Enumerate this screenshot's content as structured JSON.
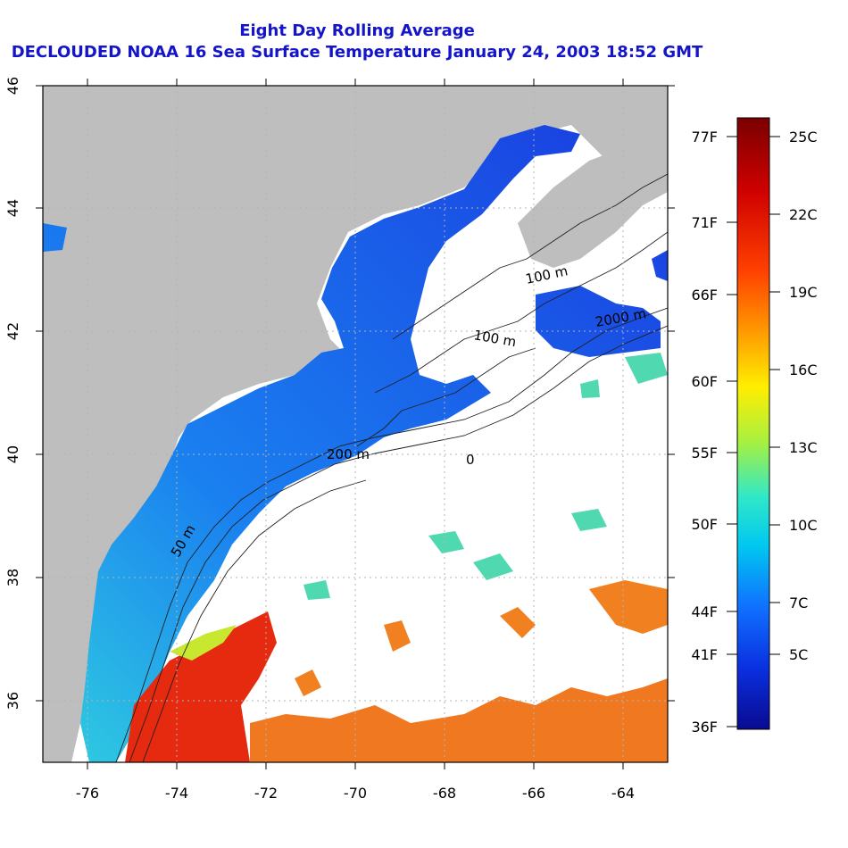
{
  "title_line1": "Eight Day Rolling Average",
  "title_line2": "DECLOUDED NOAA 16 Sea Surface Temperature January 24, 2003 18:52 GMT",
  "map": {
    "lon_range": [
      -77,
      -63
    ],
    "lat_range": [
      35,
      46
    ],
    "x_ticks": [
      "-76",
      "-74",
      "-72",
      "-70",
      "-68",
      "-66",
      "-64"
    ],
    "y_ticks": [
      "36",
      "38",
      "40",
      "42",
      "44",
      "46"
    ],
    "grid": "dotted",
    "contour_labels": [
      "50 m",
      "200 m",
      "100 m",
      "100 m",
      "2000 m",
      "0"
    ],
    "colors": {
      "land": "#bebebe",
      "cloud": "#ffffff",
      "cold": "#1a3be0",
      "warm": "#e03010"
    }
  },
  "colorbar": {
    "fahrenheit_labels": [
      "77F",
      "71F",
      "66F",
      "60F",
      "55F",
      "50F",
      "44F",
      "41F",
      "36F"
    ],
    "celsius_labels": [
      "25C",
      "22C",
      "19C",
      "16C",
      "13C",
      "10C",
      "7C",
      "5C"
    ],
    "gradient_colors": [
      "#7a0000",
      "#d00000",
      "#ff4000",
      "#ff9a00",
      "#ffee00",
      "#a8f040",
      "#30e8c8",
      "#00c8f0",
      "#1070ff",
      "#0a30e0",
      "#0a0a90"
    ]
  }
}
